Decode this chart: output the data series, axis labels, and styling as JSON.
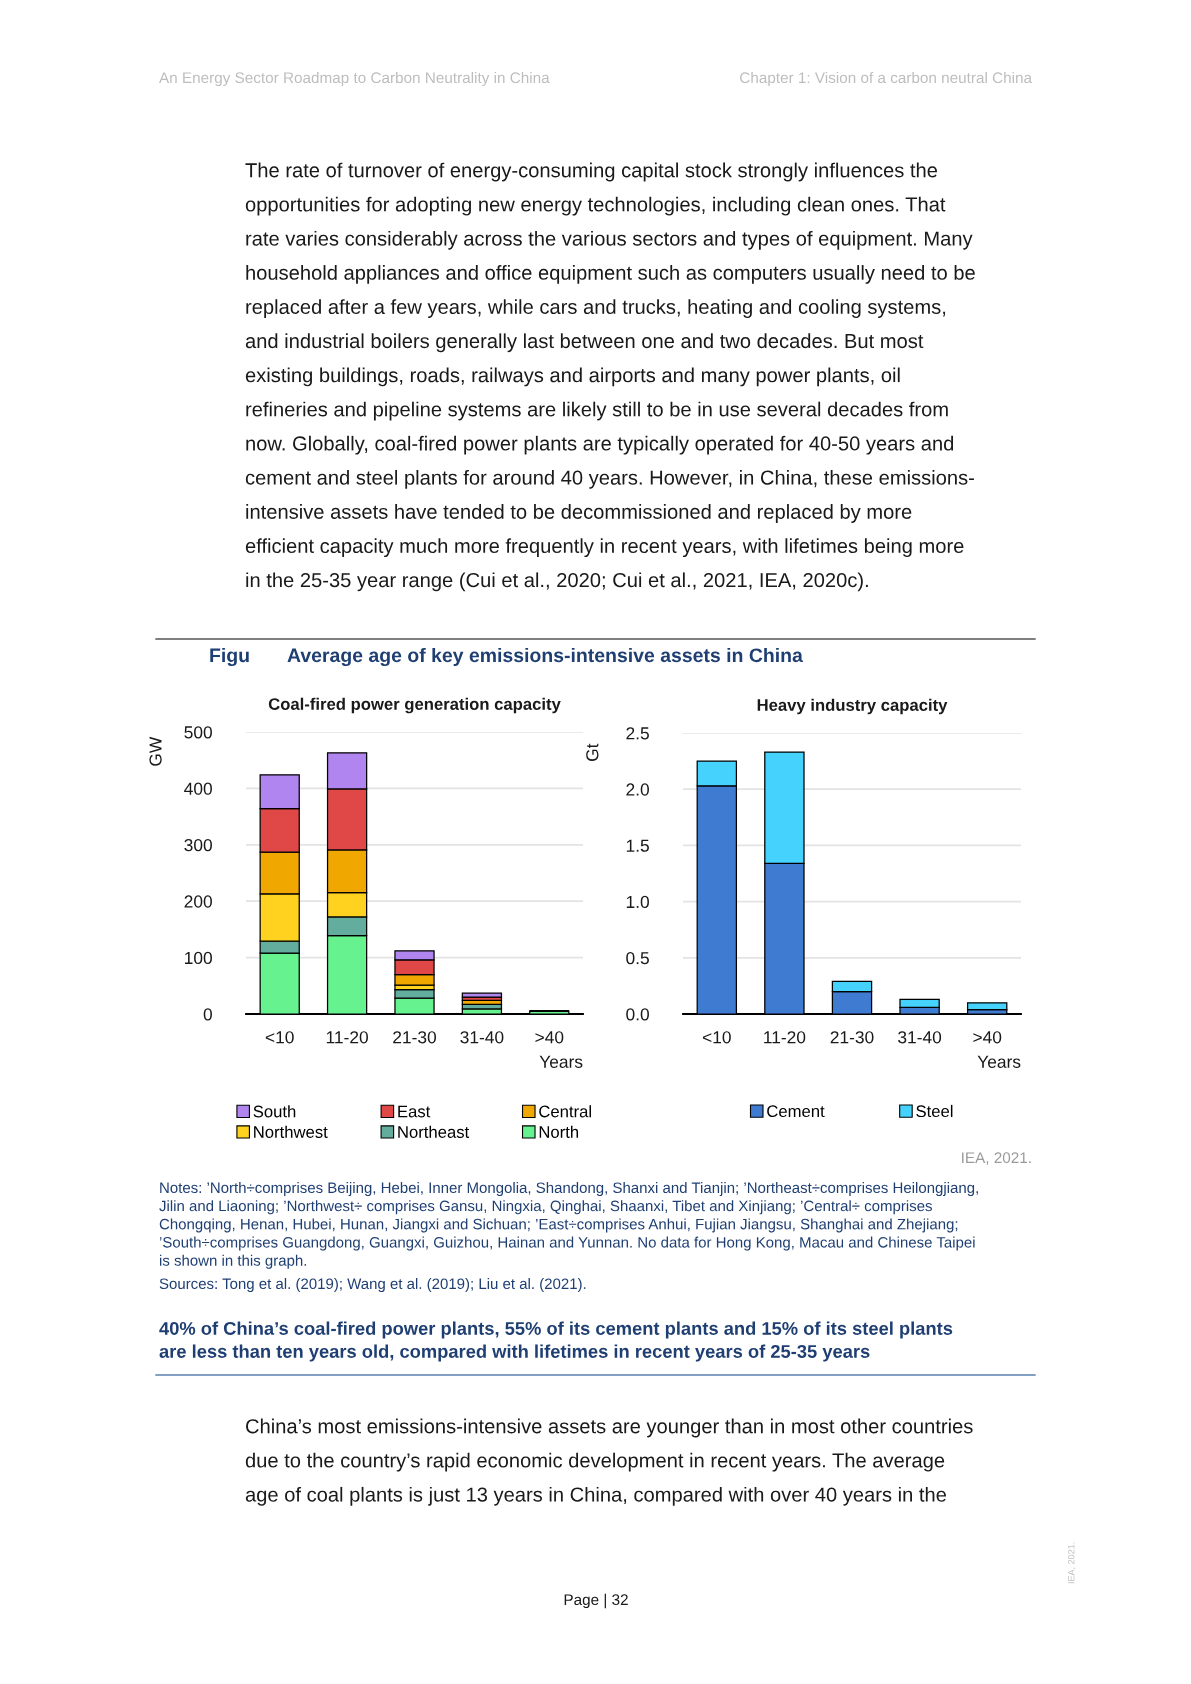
{
  "chart_data": [
    {
      "type": "bar",
      "title": "Coal-fired power generation capacity",
      "xlabel": "Years",
      "ylabel": "GW",
      "stacked": true,
      "grid": "y",
      "legend": "bottom",
      "categories": [
        "<10",
        "11-20",
        "21-30",
        "31-40",
        ">40"
      ],
      "ylim": [
        0,
        500
      ],
      "yticks": [
        0,
        100,
        200,
        300,
        400,
        500
      ],
      "series": [
        {
          "name": "North",
          "color": "#66f28f",
          "values": [
            108,
            139,
            28,
            9,
            5
          ]
        },
        {
          "name": "Northeast",
          "color": "#62ad9d",
          "values": [
            21,
            33,
            15,
            8,
            null
          ]
        },
        {
          "name": "Northwest",
          "color": "#ffd21f",
          "values": [
            84,
            43,
            8,
            null,
            null
          ]
        },
        {
          "name": "Central",
          "color": "#f0a800",
          "values": [
            74,
            76,
            19,
            7,
            null
          ]
        },
        {
          "name": "East",
          "color": "#e04848",
          "values": [
            77,
            108,
            26,
            6,
            null
          ]
        },
        {
          "name": "South",
          "color": "#b085f0",
          "values": [
            60,
            64,
            16,
            7,
            null
          ]
        }
      ],
      "annotations": [
        "An Energy Sector Roadmap to Carbon Neutrality in China",
        "Chapter 1: Vision of a carbon neutral China",
        "The rate of turnover of energy-consuming capital stock strongly influences the",
        "opportunities for adopting new energy technologies, including clean ones. That",
        "rate varies considerably across the various sectors and types of equipment. Many",
        "household appliances and office equipment such as computers usually need to be",
        "replaced after a few years, while cars and trucks, heating and cooling systems,",
        "and industrial boilers generally last between one and two decades. But most",
        "existing buildings, roads, railways and airports and many power plants, oil",
        "refineries and pipeline systems are likely still to be in use several decades from",
        "now. Globally, coal-fired power plants are typically operated for 40-50 years and",
        "cement and steel plants for around 40 years. However, in China, these emissions-",
        "intensive assets have tended to be decommissioned and replaced by more",
        "efficient capacity much more frequently in recent years, with lifetimes being more",
        "in the 25-35 year range (Cui et al., 2020; Cui et al., 2021, IEA, 2020c).",
        "Figu",
        "Average age of key emissions-intensive assets in China",
        "IEA, 2021.",
        "Notes: ’North÷comprises Beijing, Hebei, Inner Mongolia, Shandong, Shanxi and Tianjin; ’Northeast÷comprises Heilongjiang,",
        "Jilin and Liaoning; ’Northwest÷ comprises Gansu, Ningxia, Qinghai, Shaanxi, Tibet and Xinjiang; ’Central÷ comprises",
        "Chongqing, Henan, Hubei, Hunan, Jiangxi and Sichuan; ’East÷comprises Anhui, Fujian Jiangsu, Shanghai and Zhejiang;",
        "’South÷comprises Guangdong, Guangxi, Guizhou, Hainan and Yunnan. No data for Hong Kong, Macau and Chinese Taipei",
        "is shown in this graph.",
        "Sources: Tong et al. (2019); Wang et al. (2019); Liu et al. (2021).",
        "40% of China’s coal-fired power plants, 55% of its cement plants and 15% of its steel plants",
        "are less than ten years old, compared with lifetimes in recent years of 25-35 years",
        "China’s most emissions-intensive assets are younger than in most other countries",
        "due to the country’s rapid economic development in recent years. The average",
        "age of coal plants is just 13 years in China, compared with over 40 years in the",
        "Page | 32",
        "IEA, 2021."
      ]
    },
    {
      "type": "bar",
      "title": "Heavy industry capacity",
      "xlabel": "Years",
      "ylabel": "Gt",
      "stacked": true,
      "grid": "y",
      "legend": "bottom",
      "categories": [
        "<10",
        "11-20",
        "21-30",
        "31-40",
        ">40"
      ],
      "ylim": [
        0,
        2.5
      ],
      "yticks": [
        {
          "value": 0,
          "label": "0.0"
        },
        0.5,
        {
          "value": 1,
          "label": "1.0"
        },
        1.5,
        {
          "value": 2,
          "label": "2.0"
        },
        2.5
      ],
      "series": [
        {
          "name": "Cement",
          "color": "#3f7bd1",
          "values": [
            2.03,
            1.34,
            0.2,
            0.06,
            0.04
          ]
        },
        {
          "name": "Steel",
          "color": "#45d3fd",
          "values": [
            0.22,
            0.99,
            0.09,
            0.07,
            0.06
          ]
        }
      ]
    }
  ]
}
